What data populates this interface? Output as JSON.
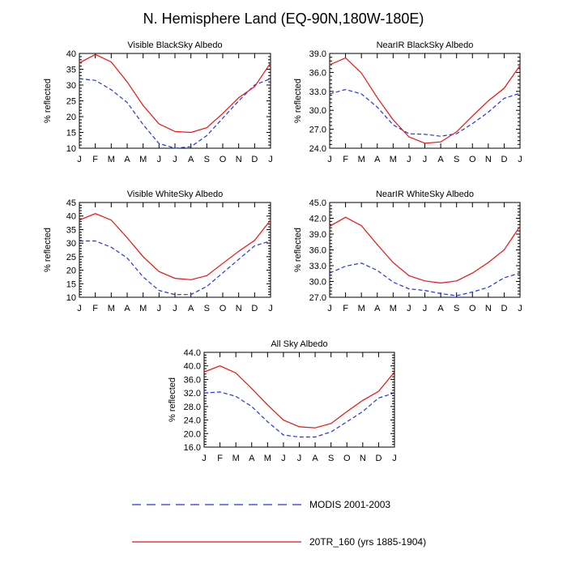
{
  "figure": {
    "title": "N. Hemisphere Land (EQ-90N,180W-180E)"
  },
  "legend": {
    "modis_label": "MODIS 2001-2003",
    "tr_label": "20TR_160 (yrs 1885-1904)",
    "modis_color": "#2233ee",
    "tr_color": "#ee1111"
  },
  "chart_data": [
    {
      "type": "line",
      "title": "Visible BlackSky Albedo",
      "xlabel": "",
      "ylabel": "% reflected",
      "x": [
        "J",
        "F",
        "M",
        "A",
        "M",
        "J",
        "J",
        "A",
        "S",
        "O",
        "N",
        "D",
        "J"
      ],
      "yticks": [
        "10",
        "15",
        "20",
        "25",
        "30",
        "35",
        "40"
      ],
      "ylim": [
        10,
        40
      ],
      "series": [
        {
          "name": "MODIS 2001-2003",
          "style": "dashed",
          "values": [
            32.0,
            31.5,
            28.5,
            24.5,
            17.5,
            11.5,
            10.0,
            10.5,
            14.0,
            19.5,
            25.0,
            30.0,
            32.0
          ]
        },
        {
          "name": "20TR_160 (yrs 1885-1904)",
          "style": "solid",
          "values": [
            37.0,
            39.7,
            37.3,
            31.0,
            23.5,
            17.7,
            15.3,
            15.0,
            16.5,
            21.0,
            26.0,
            29.5,
            37.0
          ]
        }
      ]
    },
    {
      "type": "line",
      "title": "NearIR BlackSky Albedo",
      "xlabel": "",
      "ylabel": "% reflected",
      "x": [
        "J",
        "F",
        "M",
        "A",
        "M",
        "J",
        "J",
        "A",
        "S",
        "O",
        "N",
        "D",
        "J"
      ],
      "yticks": [
        "24.0",
        "27.0",
        "30.0",
        "33.0",
        "36.0",
        "39.0"
      ],
      "ylim": [
        24,
        39
      ],
      "series": [
        {
          "name": "MODIS 2001-2003",
          "style": "dashed",
          "values": [
            32.6,
            33.3,
            32.6,
            30.5,
            27.7,
            26.3,
            26.2,
            25.9,
            26.3,
            27.9,
            29.7,
            31.9,
            32.7
          ]
        },
        {
          "name": "20TR_160 (yrs 1885-1904)",
          "style": "solid",
          "values": [
            37.2,
            38.3,
            35.9,
            32.0,
            28.5,
            25.8,
            24.8,
            25.0,
            26.6,
            29.1,
            31.5,
            33.5,
            37.1
          ]
        }
      ]
    },
    {
      "type": "line",
      "title": "Visible WhiteSky Albedo",
      "xlabel": "",
      "ylabel": "% reflected",
      "x": [
        "J",
        "F",
        "M",
        "A",
        "M",
        "J",
        "J",
        "A",
        "S",
        "O",
        "N",
        "D",
        "J"
      ],
      "yticks": [
        "10",
        "15",
        "20",
        "25",
        "30",
        "35",
        "40",
        "45"
      ],
      "ylim": [
        10,
        45
      ],
      "series": [
        {
          "name": "MODIS 2001-2003",
          "style": "dashed",
          "values": [
            30.8,
            30.8,
            28.5,
            24.5,
            17.5,
            12.5,
            11.0,
            11.0,
            14.0,
            19.0,
            24.0,
            29.0,
            30.8
          ]
        },
        {
          "name": "20TR_160 (yrs 1885-1904)",
          "style": "solid",
          "values": [
            38.5,
            40.9,
            38.5,
            32.0,
            25.0,
            19.5,
            17.0,
            16.5,
            18.0,
            22.5,
            27.0,
            31.0,
            38.5
          ]
        }
      ]
    },
    {
      "type": "line",
      "title": "NearIR WhiteSky Albedo",
      "xlabel": "",
      "ylabel": "% reflected",
      "x": [
        "J",
        "F",
        "M",
        "A",
        "M",
        "J",
        "J",
        "A",
        "S",
        "O",
        "N",
        "D",
        "J"
      ],
      "yticks": [
        "27.0",
        "30.0",
        "33.0",
        "36.0",
        "39.0",
        "42.0",
        "45.0"
      ],
      "ylim": [
        27,
        45
      ],
      "series": [
        {
          "name": "MODIS 2001-2003",
          "style": "dashed",
          "values": [
            31.6,
            32.9,
            33.5,
            32.1,
            29.9,
            28.6,
            28.3,
            27.7,
            27.3,
            28.0,
            28.9,
            30.7,
            31.6
          ]
        },
        {
          "name": "20TR_160 (yrs 1885-1904)",
          "style": "solid",
          "values": [
            40.5,
            42.2,
            40.6,
            37.0,
            33.6,
            31.1,
            30.1,
            29.7,
            30.1,
            31.6,
            33.6,
            36.0,
            40.5
          ]
        }
      ]
    },
    {
      "type": "line",
      "title": "All Sky Albedo",
      "xlabel": "",
      "ylabel": "% reflected",
      "x": [
        "J",
        "F",
        "M",
        "A",
        "M",
        "J",
        "J",
        "A",
        "S",
        "O",
        "N",
        "D",
        "J"
      ],
      "yticks": [
        "16.0",
        "20.0",
        "24.0",
        "28.0",
        "32.0",
        "36.0",
        "40.0",
        "44.0"
      ],
      "ylim": [
        16,
        44
      ],
      "series": [
        {
          "name": "MODIS 2001-2003",
          "style": "dashed",
          "values": [
            32.0,
            32.3,
            31.0,
            28.0,
            23.5,
            19.6,
            19.0,
            19.0,
            20.5,
            23.5,
            26.5,
            30.5,
            32.0
          ]
        },
        {
          "name": "20TR_160 (yrs 1885-1904)",
          "style": "solid",
          "values": [
            38.2,
            40.0,
            37.9,
            33.3,
            28.5,
            24.0,
            22.0,
            21.7,
            23.0,
            26.5,
            29.8,
            32.5,
            38.2
          ]
        }
      ]
    }
  ]
}
